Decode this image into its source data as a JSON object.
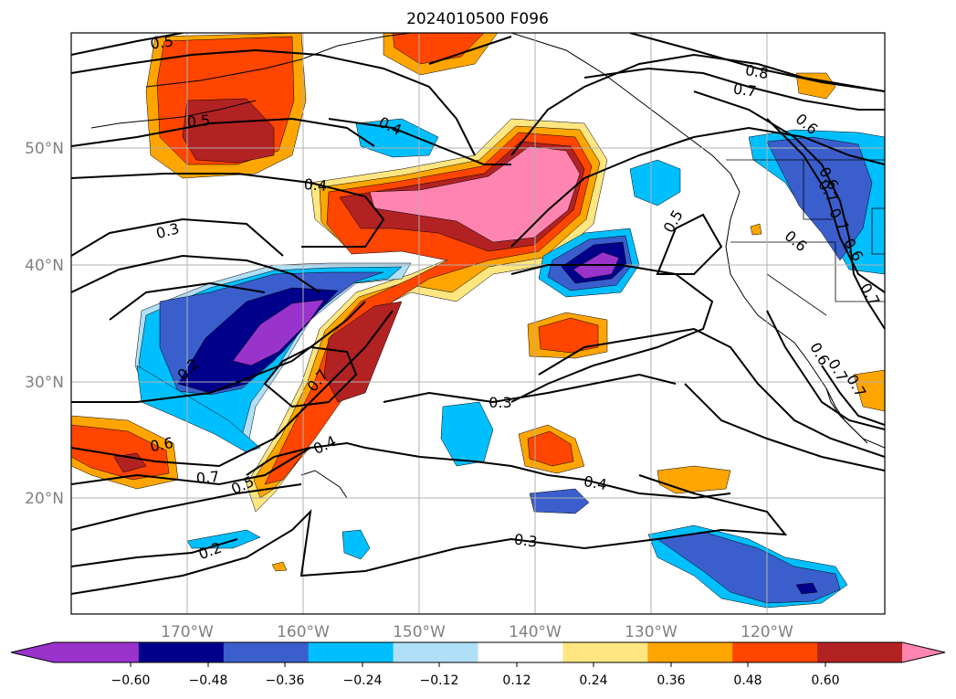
{
  "title": "2024010500 F096",
  "map": {
    "lat_labels": [
      "50°N",
      "40°N",
      "30°N",
      "20°N"
    ],
    "lon_labels": [
      "170°W",
      "160°W",
      "150°W",
      "140°W",
      "130°W",
      "120°W"
    ],
    "contour_labels": [
      "0.5",
      "0.5",
      "0.4",
      "0.4",
      "0.3",
      "0.2",
      "0.6",
      "0.7",
      "0.5",
      "0.2",
      "0.7",
      "0.4",
      "0.3",
      "0.4",
      "0.3",
      "0.5",
      "0.8",
      "0.7",
      "0.6",
      "0.6",
      "0.6",
      "0.7",
      "0.6",
      "0.7",
      "0.7",
      "0.6",
      "0.7",
      "0.7"
    ]
  },
  "colorbar": {
    "ticks": [
      "−0.60",
      "−0.48",
      "−0.36",
      "−0.24",
      "−0.12",
      "0.12",
      "0.24",
      "0.36",
      "0.48",
      "0.60"
    ],
    "colors": [
      "#9933cc",
      "#00008b",
      "#3a5fcd",
      "#00bfff",
      "#b0e0f8",
      "#ffffff",
      "#ffe680",
      "#ffa500",
      "#ff4500",
      "#b22222",
      "#ff85b0",
      "#ff85b0"
    ]
  }
}
